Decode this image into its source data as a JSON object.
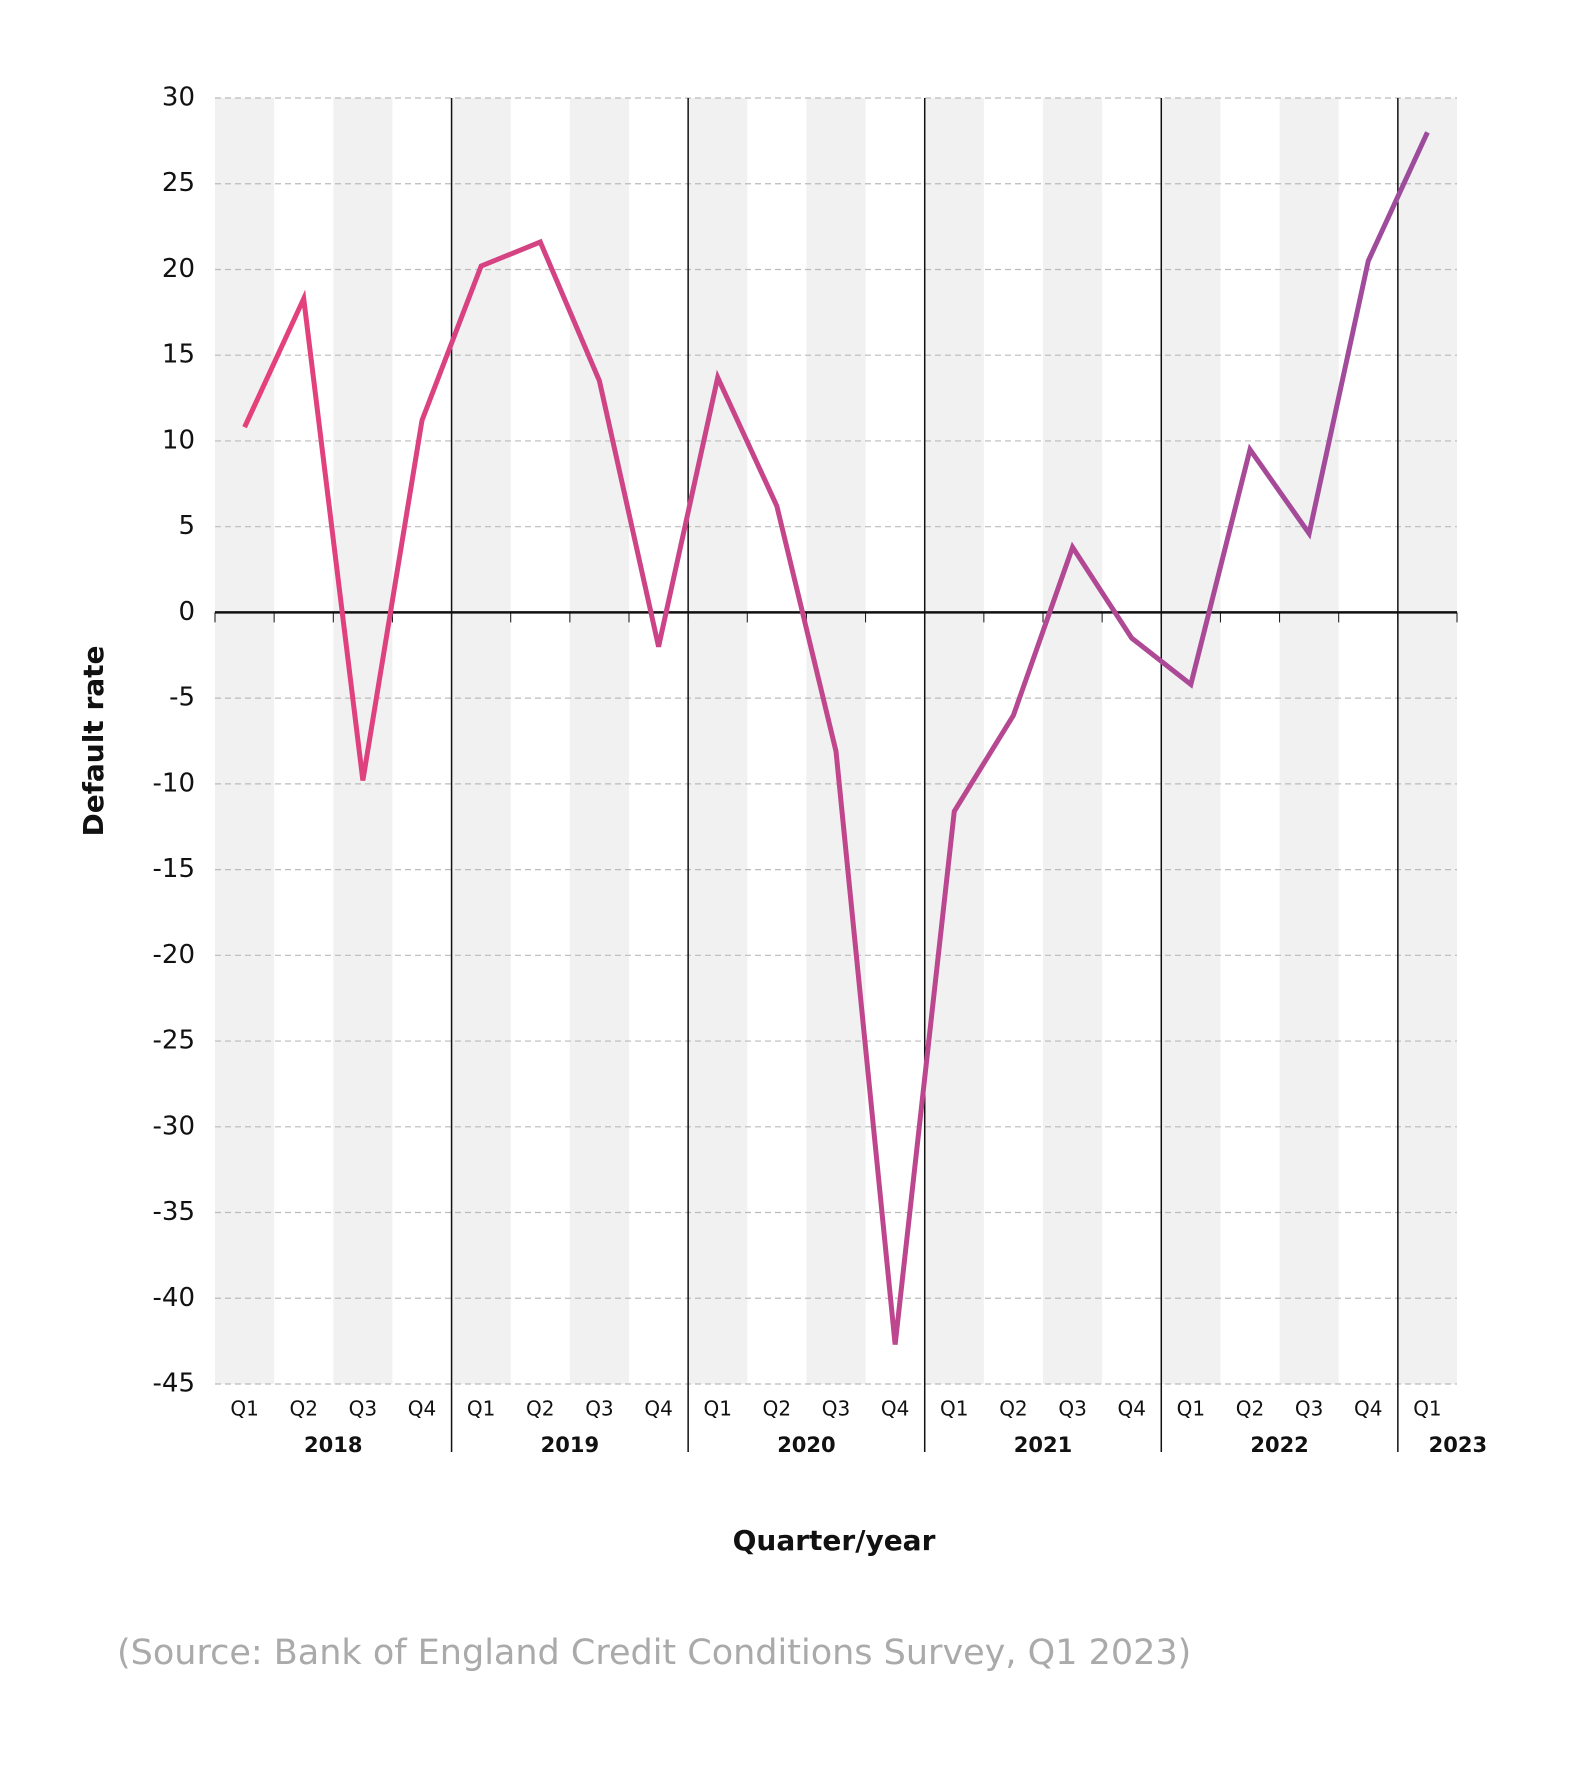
{
  "chart_data": {
    "type": "line",
    "y_label": "Default rate",
    "x_label": "Quarter/year",
    "source": "(Source:  Bank of England Credit Conditions Survey, Q1 2023)",
    "categories": [
      "Q1",
      "Q2",
      "Q3",
      "Q4",
      "Q1",
      "Q2",
      "Q3",
      "Q4",
      "Q1",
      "Q2",
      "Q3",
      "Q4",
      "Q1",
      "Q2",
      "Q3",
      "Q4",
      "Q1",
      "Q2",
      "Q3",
      "Q4",
      "Q1"
    ],
    "years": [
      "2018",
      "2019",
      "2020",
      "2021",
      "2022",
      "2023"
    ],
    "series": [
      {
        "name": "Default rate",
        "colors": [
          "#e8407a",
          "#9a4c9e"
        ],
        "values": [
          10.8,
          18.3,
          -9.8,
          11.2,
          20.2,
          21.6,
          13.5,
          -2.0,
          13.7,
          6.2,
          -8.1,
          -42.7,
          -11.6,
          -6.0,
          3.8,
          -1.5,
          -4.2,
          9.5,
          4.6,
          20.5,
          28.0
        ]
      }
    ],
    "ylim": [
      -45,
      30
    ],
    "yticks": [
      -45,
      -40,
      -35,
      -30,
      -25,
      -20,
      -15,
      -10,
      -5,
      0,
      5,
      10,
      15,
      20,
      25,
      30
    ],
    "grid": true
  }
}
